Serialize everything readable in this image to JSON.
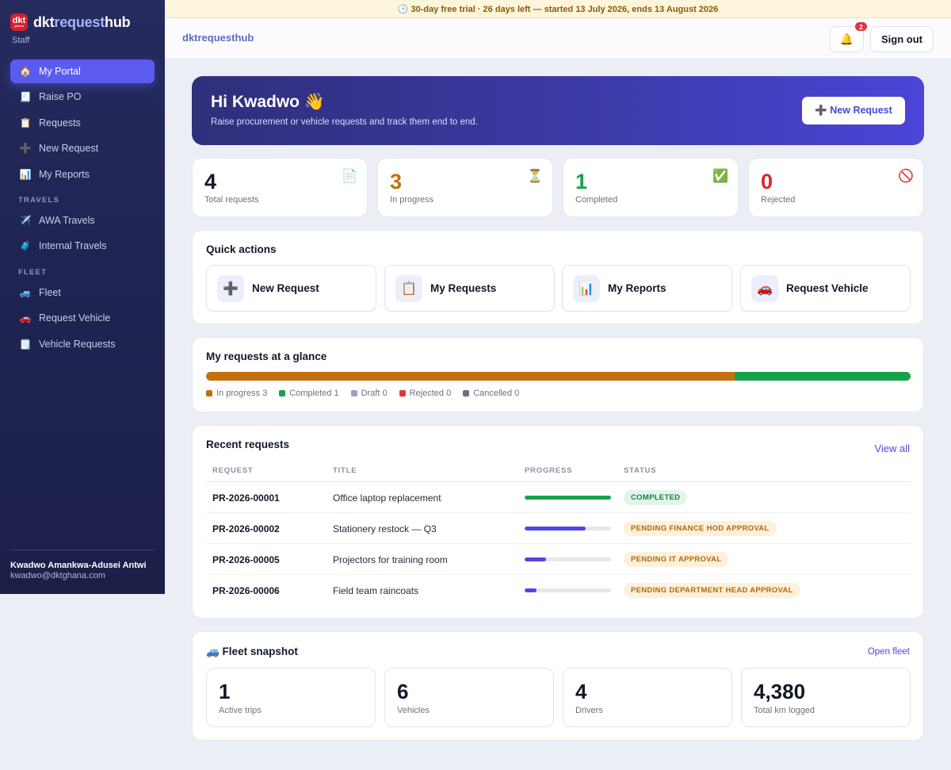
{
  "brand": {
    "logo_text": "dkt",
    "logo_sub": "ghana",
    "name_a": "dkt",
    "name_b": "request",
    "name_c": "hub",
    "role": "Staff"
  },
  "nav": {
    "main": [
      {
        "icon": "🏠",
        "icon_name": "home-icon",
        "label": "My Portal",
        "active": true
      },
      {
        "icon": "🧾",
        "icon_name": "receipt-icon",
        "label": "Raise PO"
      },
      {
        "icon": "📋",
        "icon_name": "clipboard-icon",
        "label": "Requests"
      },
      {
        "icon": "➕",
        "icon_name": "plus-icon",
        "label": "New Request"
      },
      {
        "icon": "📊",
        "icon_name": "bar-chart-icon",
        "label": "My Reports"
      }
    ],
    "travels_heading": "TRAVELS",
    "travels": [
      {
        "icon": "✈️",
        "icon_name": "airplane-icon",
        "label": "AWA Travels"
      },
      {
        "icon": "🧳",
        "icon_name": "luggage-icon",
        "label": "Internal Travels"
      }
    ],
    "fleet_heading": "FLEET",
    "fleet": [
      {
        "icon": "🚙",
        "icon_name": "suv-icon",
        "label": "Fleet"
      },
      {
        "icon": "🚗",
        "icon_name": "car-icon",
        "label": "Request Vehicle"
      },
      {
        "icon": "🗒️",
        "icon_name": "notepad-icon",
        "label": "Vehicle Requests"
      }
    ]
  },
  "user": {
    "name": "Kwadwo Amankwa-Adusei Antwi",
    "email": "kwadwo@dktghana.com"
  },
  "trial_banner": "🕒 30-day free trial · 26 days left — started 13 July 2026, ends 13 August 2026",
  "topbar": {
    "brand": "dktrequesthub",
    "bell_icon": "🔔",
    "notification_count": "2",
    "sign_out": "Sign out"
  },
  "hero": {
    "greeting": "Hi Kwadwo 👋",
    "subtitle": "Raise procurement or vehicle requests and track them end to end.",
    "button": "➕ New Request"
  },
  "stats": [
    {
      "value": "4",
      "label": "Total requests",
      "icon": "📄",
      "icon_name": "document-icon",
      "color": "#111827"
    },
    {
      "value": "3",
      "label": "In progress",
      "icon": "⏳",
      "icon_name": "hourglass-icon",
      "color": "#c2710c"
    },
    {
      "value": "1",
      "label": "Completed",
      "icon": "✅",
      "icon_name": "check-icon",
      "color": "#16a34a"
    },
    {
      "value": "0",
      "label": "Rejected",
      "icon": "🚫",
      "icon_name": "prohibited-icon",
      "color": "#dc2626"
    }
  ],
  "quick_actions": {
    "title": "Quick actions",
    "items": [
      {
        "icon": "➕",
        "icon_name": "plus-icon",
        "label": "New Request"
      },
      {
        "icon": "📋",
        "icon_name": "clipboard-icon",
        "label": "My Requests"
      },
      {
        "icon": "📊",
        "icon_name": "bar-chart-icon",
        "label": "My Reports"
      },
      {
        "icon": "🚗",
        "icon_name": "car-icon",
        "label": "Request Vehicle"
      }
    ]
  },
  "glance": {
    "title": "My requests at a glance",
    "segments": [
      {
        "label": "In progress 3",
        "count": 3,
        "color": "#c2710c"
      },
      {
        "label": "Completed 1",
        "count": 1,
        "color": "#16a34a"
      },
      {
        "label": "Draft 0",
        "count": 0,
        "color": "#9aa3c4"
      },
      {
        "label": "Rejected 0",
        "count": 0,
        "color": "#e1343f"
      },
      {
        "label": "Cancelled 0",
        "count": 0,
        "color": "#6b7280"
      }
    ]
  },
  "recent": {
    "title": "Recent requests",
    "view_all": "View all",
    "columns": [
      "REQUEST",
      "TITLE",
      "PROGRESS",
      "STATUS"
    ],
    "rows": [
      {
        "id": "PR-2026-00001",
        "title": "Office laptop replacement",
        "progress": 1.0,
        "progress_color": "#16a34a",
        "status": "COMPLETED",
        "status_kind": "green"
      },
      {
        "id": "PR-2026-00002",
        "title": "Stationery restock — Q3",
        "progress": 0.71,
        "progress_color": "#4f46e5",
        "status": "PENDING FINANCE HOD APPROVAL",
        "status_kind": "amber"
      },
      {
        "id": "PR-2026-00005",
        "title": "Projectors for training room",
        "progress": 0.25,
        "progress_color": "#4f46e5",
        "status": "PENDING IT APPROVAL",
        "status_kind": "amber"
      },
      {
        "id": "PR-2026-00006",
        "title": "Field team raincoats",
        "progress": 0.14,
        "progress_color": "#4f46e5",
        "status": "PENDING DEPARTMENT HEAD APPROVAL",
        "status_kind": "amber"
      }
    ]
  },
  "fleet": {
    "title": "🚙 Fleet snapshot",
    "open_link": "Open fleet",
    "cards": [
      {
        "value": "1",
        "label": "Active trips"
      },
      {
        "value": "6",
        "label": "Vehicles"
      },
      {
        "value": "4",
        "label": "Drivers"
      },
      {
        "value": "4,380",
        "label": "Total km logged"
      }
    ]
  }
}
